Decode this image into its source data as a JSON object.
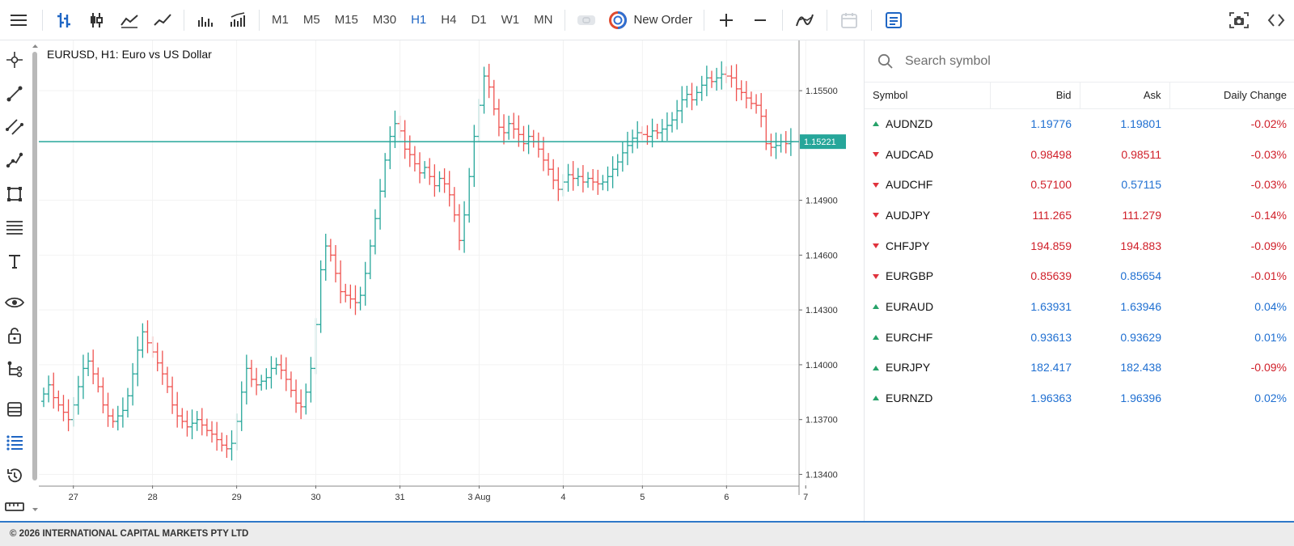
{
  "toolbar": {
    "timeframes": [
      "M1",
      "M5",
      "M15",
      "M30",
      "H1",
      "H4",
      "D1",
      "W1",
      "MN"
    ],
    "active_timeframe": "H1",
    "new_order_label": "New Order",
    "icons": [
      "menu-icon",
      "bar-chart-icon",
      "candlestick-icon",
      "line-chart-icon",
      "line-chart-alt-icon",
      "volume-bars-icon",
      "tick-volume-icon",
      "toggle-icon",
      "plus-icon",
      "minus-icon",
      "indicators-icon",
      "calendar-icon",
      "trade-panel-icon",
      "screenshot-icon"
    ]
  },
  "left_tools": [
    "crosshair-icon",
    "line-icon",
    "channel-icon",
    "polyline-icon",
    "shape-icon",
    "fibonacci-icon",
    "text-icon",
    "eye-icon",
    "lock-icon",
    "objects-tree-icon",
    "layers-icon",
    "list-icon",
    "history-icon",
    "ruler-icon"
  ],
  "chart": {
    "title": "EURUSD, H1: Euro vs US Dollar",
    "current_price_label": "1.15221",
    "colors": {
      "bull": "#26a69a",
      "bear": "#ef5350",
      "price_line": "#26a69a",
      "grid": "#f2f2f2"
    }
  },
  "chart_data": {
    "type": "bar",
    "symbol": "EURUSD",
    "timeframe": "H1",
    "title": "EURUSD, H1: Euro vs US Dollar",
    "y_ticks": [
      "1.15500",
      "1.14900",
      "1.14600",
      "1.14300",
      "1.14000",
      "1.13700",
      "1.13400"
    ],
    "y_tick_values": [
      1.155,
      1.149,
      1.146,
      1.143,
      1.14,
      1.137,
      1.134
    ],
    "x_ticks": [
      "27",
      "28",
      "29",
      "30",
      "31",
      "3 Aug",
      "4",
      "5",
      "6",
      "7"
    ],
    "ylim": [
      1.1334,
      1.15775
    ],
    "current_price": 1.15221,
    "grid": true,
    "series": [
      {
        "name": "EURUSD",
        "closes": [
          1.1384,
          1.1389,
          1.1382,
          1.1378,
          1.1374,
          1.137,
          1.1378,
          1.1388,
          1.1398,
          1.1402,
          1.1395,
          1.1388,
          1.1378,
          1.1372,
          1.1369,
          1.1372,
          1.1375,
          1.1383,
          1.1395,
          1.1408,
          1.1418,
          1.1412,
          1.1407,
          1.1401,
          1.1395,
          1.1388,
          1.1378,
          1.1372,
          1.1369,
          1.1366,
          1.1368,
          1.137,
          1.1367,
          1.1364,
          1.1362,
          1.1359,
          1.1356,
          1.1354,
          1.1357,
          1.1369,
          1.1385,
          1.1398,
          1.1392,
          1.1389,
          1.1391,
          1.1393,
          1.1398,
          1.14,
          1.1397,
          1.1392,
          1.1386,
          1.1379,
          1.1377,
          1.1385,
          1.1398,
          1.1422,
          1.1452,
          1.1465,
          1.146,
          1.145,
          1.144,
          1.1438,
          1.1436,
          1.1434,
          1.1438,
          1.145,
          1.1465,
          1.148,
          1.1495,
          1.1512,
          1.1525,
          1.1532,
          1.1528,
          1.1518,
          1.1515,
          1.151,
          1.1505,
          1.1508,
          1.1503,
          1.1498,
          1.1502,
          1.1499,
          1.1493,
          1.1482,
          1.1468,
          1.1482,
          1.1503,
          1.1525,
          1.1542,
          1.1558,
          1.1552,
          1.154,
          1.153,
          1.1527,
          1.1532,
          1.1529,
          1.1526,
          1.1521,
          1.1525,
          1.1522,
          1.1518,
          1.1512,
          1.1507,
          1.1501,
          1.1496,
          1.15,
          1.1504,
          1.1502,
          1.1503,
          1.15,
          1.1502,
          1.15,
          1.1499,
          1.15,
          1.1503,
          1.1507,
          1.1511,
          1.1516,
          1.152,
          1.1524,
          1.1527,
          1.1526,
          1.1525,
          1.1528,
          1.1527,
          1.1529,
          1.1531,
          1.1534,
          1.1539,
          1.1545,
          1.1548,
          1.1545,
          1.1549,
          1.1553,
          1.1557,
          1.1555,
          1.1557,
          1.1559,
          1.1558,
          1.1557,
          1.1551,
          1.1549,
          1.1546,
          1.1543,
          1.1542,
          1.1536,
          1.1521,
          1.1519,
          1.152,
          1.1522,
          1.1521,
          1.1522
        ]
      }
    ]
  },
  "watch": {
    "search_placeholder": "Search symbol",
    "columns": [
      "Symbol",
      "Bid",
      "Ask",
      "Daily Change"
    ],
    "rows": [
      {
        "symbol": "AUDNZD",
        "bid": "1.19776",
        "ask": "1.19801",
        "change": "-0.02%",
        "dir": "up",
        "price_color": "#1f6fd1",
        "change_color": "#d0202a"
      },
      {
        "symbol": "AUDCAD",
        "bid": "0.98498",
        "ask": "0.98511",
        "change": "-0.03%",
        "dir": "down",
        "price_color": "#d0202a",
        "change_color": "#d0202a"
      },
      {
        "symbol": "AUDCHF",
        "bid": "0.57100",
        "ask": "0.57115",
        "change": "-0.03%",
        "dir": "down",
        "price_color": "#d0202a",
        "ask_color": "#1f6fd1",
        "change_color": "#d0202a"
      },
      {
        "symbol": "AUDJPY",
        "bid": "111.265",
        "ask": "111.279",
        "change": "-0.14%",
        "dir": "down",
        "price_color": "#d0202a",
        "change_color": "#d0202a"
      },
      {
        "symbol": "CHFJPY",
        "bid": "194.859",
        "ask": "194.883",
        "change": "-0.09%",
        "dir": "down",
        "price_color": "#d0202a",
        "change_color": "#d0202a"
      },
      {
        "symbol": "EURGBP",
        "bid": "0.85639",
        "ask": "0.85654",
        "change": "-0.01%",
        "dir": "down",
        "price_color": "#d0202a",
        "ask_color": "#1f6fd1",
        "change_color": "#d0202a"
      },
      {
        "symbol": "EURAUD",
        "bid": "1.63931",
        "ask": "1.63946",
        "change": "0.04%",
        "dir": "up",
        "price_color": "#1f6fd1",
        "change_color": "#1f6fd1"
      },
      {
        "symbol": "EURCHF",
        "bid": "0.93613",
        "ask": "0.93629",
        "change": "0.01%",
        "dir": "up",
        "price_color": "#1f6fd1",
        "change_color": "#1f6fd1"
      },
      {
        "symbol": "EURJPY",
        "bid": "182.417",
        "ask": "182.438",
        "change": "-0.09%",
        "dir": "up",
        "price_color": "#1f6fd1",
        "change_color": "#d0202a"
      },
      {
        "symbol": "EURNZD",
        "bid": "1.96363",
        "ask": "1.96396",
        "change": "0.02%",
        "dir": "up",
        "price_color": "#1f6fd1",
        "change_color": "#1f6fd1"
      }
    ]
  },
  "footer": {
    "text": "© 2026 INTERNATIONAL CAPITAL MARKETS PTY LTD"
  }
}
